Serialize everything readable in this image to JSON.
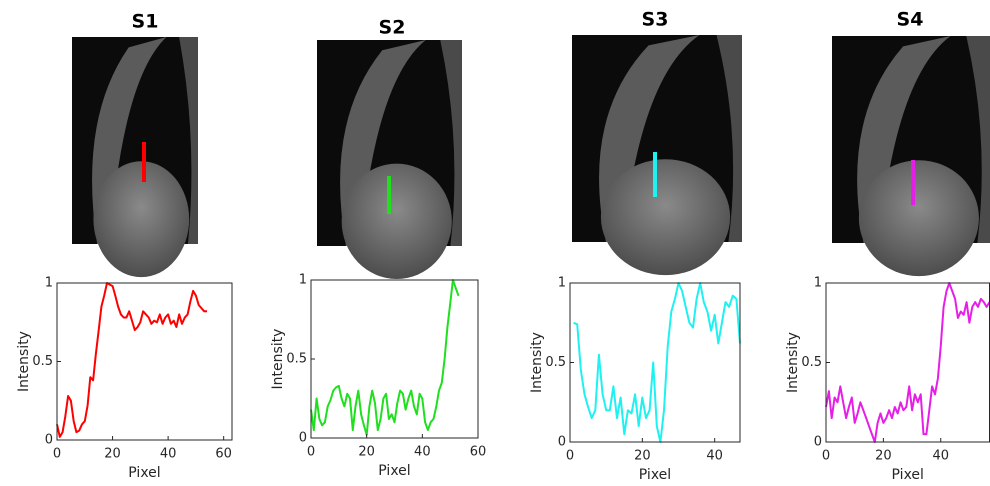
{
  "chart_data": [
    {
      "type": "line",
      "title": "S1",
      "xlabel": "Pixel",
      "ylabel": "Intensity",
      "color": "#ff0000",
      "xlim": [
        0,
        63
      ],
      "ylim": [
        0,
        1
      ],
      "xticks": [
        0,
        20,
        40,
        60
      ],
      "yticks": [
        0,
        0.5,
        1
      ],
      "x": [
        0,
        1,
        2,
        3,
        4,
        5,
        6,
        7,
        8,
        9,
        10,
        11,
        12,
        13,
        14,
        15,
        16,
        17,
        18,
        19,
        20,
        21,
        22,
        23,
        24,
        25,
        26,
        27,
        28,
        29,
        30,
        31,
        32,
        33,
        34,
        35,
        36,
        37,
        38,
        39,
        40,
        41,
        42,
        43,
        44,
        45,
        46,
        47,
        48,
        49,
        50,
        51,
        52,
        53,
        54
      ],
      "values": [
        0.1,
        0.02,
        0.05,
        0.15,
        0.28,
        0.25,
        0.12,
        0.05,
        0.06,
        0.1,
        0.12,
        0.22,
        0.4,
        0.38,
        0.55,
        0.7,
        0.85,
        0.92,
        1.0,
        0.99,
        0.98,
        0.92,
        0.85,
        0.8,
        0.78,
        0.78,
        0.82,
        0.76,
        0.7,
        0.72,
        0.75,
        0.82,
        0.8,
        0.78,
        0.74,
        0.76,
        0.75,
        0.8,
        0.74,
        0.78,
        0.8,
        0.74,
        0.76,
        0.72,
        0.8,
        0.74,
        0.78,
        0.8,
        0.88,
        0.95,
        0.92,
        0.86,
        0.84,
        0.82,
        0.82
      ]
    },
    {
      "type": "line",
      "title": "S2",
      "xlabel": "Pixel",
      "ylabel": "Intensity",
      "color": "#1fdf1f",
      "xlim": [
        0,
        60
      ],
      "ylim": [
        0,
        1
      ],
      "xticks": [
        0,
        20,
        40,
        60
      ],
      "yticks": [
        0,
        0.5,
        1
      ],
      "x": [
        0,
        1,
        2,
        3,
        4,
        5,
        6,
        7,
        8,
        9,
        10,
        11,
        12,
        13,
        14,
        15,
        16,
        17,
        18,
        19,
        20,
        21,
        22,
        23,
        24,
        25,
        26,
        27,
        28,
        29,
        30,
        31,
        32,
        33,
        34,
        35,
        36,
        37,
        38,
        39,
        40,
        41,
        42,
        43,
        44,
        45,
        46,
        47,
        48,
        49,
        50,
        51,
        52,
        53
      ],
      "values": [
        0.18,
        0.05,
        0.25,
        0.12,
        0.08,
        0.1,
        0.2,
        0.24,
        0.3,
        0.32,
        0.33,
        0.25,
        0.2,
        0.28,
        0.25,
        0.05,
        0.2,
        0.3,
        0.15,
        0.08,
        0.02,
        0.2,
        0.3,
        0.22,
        0.05,
        0.12,
        0.25,
        0.28,
        0.12,
        0.15,
        0.1,
        0.22,
        0.3,
        0.28,
        0.18,
        0.25,
        0.3,
        0.2,
        0.15,
        0.28,
        0.25,
        0.1,
        0.05,
        0.1,
        0.12,
        0.2,
        0.3,
        0.35,
        0.5,
        0.7,
        0.85,
        1.0,
        0.95,
        0.9
      ]
    },
    {
      "type": "line",
      "title": "S3",
      "xlabel": "Pixel",
      "ylabel": "Intensity",
      "color": "#1ff0f0",
      "xlim": [
        0,
        47
      ],
      "ylim": [
        0,
        1
      ],
      "xticks": [
        0,
        20,
        40
      ],
      "yticks": [
        0,
        0.5,
        1
      ],
      "x": [
        1,
        2,
        3,
        4,
        5,
        6,
        7,
        8,
        9,
        10,
        11,
        12,
        13,
        14,
        15,
        16,
        17,
        18,
        19,
        20,
        21,
        22,
        23,
        24,
        25,
        26,
        27,
        28,
        29,
        30,
        31,
        32,
        33,
        34,
        35,
        36,
        37,
        38,
        39,
        40,
        41,
        42,
        43,
        44,
        45,
        46,
        47
      ],
      "values": [
        0.75,
        0.74,
        0.45,
        0.3,
        0.22,
        0.15,
        0.2,
        0.55,
        0.3,
        0.2,
        0.2,
        0.35,
        0.15,
        0.28,
        0.05,
        0.2,
        0.18,
        0.3,
        0.1,
        0.28,
        0.15,
        0.2,
        0.5,
        0.1,
        0.0,
        0.2,
        0.6,
        0.82,
        0.9,
        1.0,
        0.95,
        0.85,
        0.75,
        0.72,
        0.9,
        1.0,
        0.88,
        0.82,
        0.7,
        0.8,
        0.62,
        0.75,
        0.88,
        0.85,
        0.92,
        0.9,
        0.62
      ]
    },
    {
      "type": "line",
      "title": "S4",
      "xlabel": "Pixel",
      "ylabel": "Intensity",
      "color": "#e61fe6",
      "xlim": [
        0,
        57
      ],
      "ylim": [
        0,
        1
      ],
      "xticks": [
        0,
        20,
        40
      ],
      "yticks": [
        0,
        0.5,
        1
      ],
      "x": [
        0,
        1,
        2,
        3,
        4,
        5,
        6,
        7,
        8,
        9,
        10,
        11,
        12,
        13,
        14,
        15,
        16,
        17,
        18,
        19,
        20,
        21,
        22,
        23,
        24,
        25,
        26,
        27,
        28,
        29,
        30,
        31,
        32,
        33,
        34,
        35,
        36,
        37,
        38,
        39,
        40,
        41,
        42,
        43,
        44,
        45,
        46,
        47,
        48,
        49,
        50,
        51,
        52,
        53,
        54,
        55,
        56,
        57
      ],
      "values": [
        0.22,
        0.32,
        0.15,
        0.28,
        0.25,
        0.35,
        0.25,
        0.15,
        0.22,
        0.28,
        0.12,
        0.18,
        0.25,
        0.2,
        0.15,
        0.1,
        0.05,
        0.0,
        0.12,
        0.18,
        0.12,
        0.15,
        0.2,
        0.15,
        0.22,
        0.18,
        0.25,
        0.2,
        0.22,
        0.35,
        0.2,
        0.3,
        0.25,
        0.3,
        0.05,
        0.05,
        0.2,
        0.35,
        0.3,
        0.4,
        0.6,
        0.85,
        0.95,
        1.0,
        0.95,
        0.9,
        0.78,
        0.82,
        0.8,
        0.88,
        0.75,
        0.85,
        0.88,
        0.85,
        0.9,
        0.88,
        0.85,
        0.88
      ]
    }
  ]
}
